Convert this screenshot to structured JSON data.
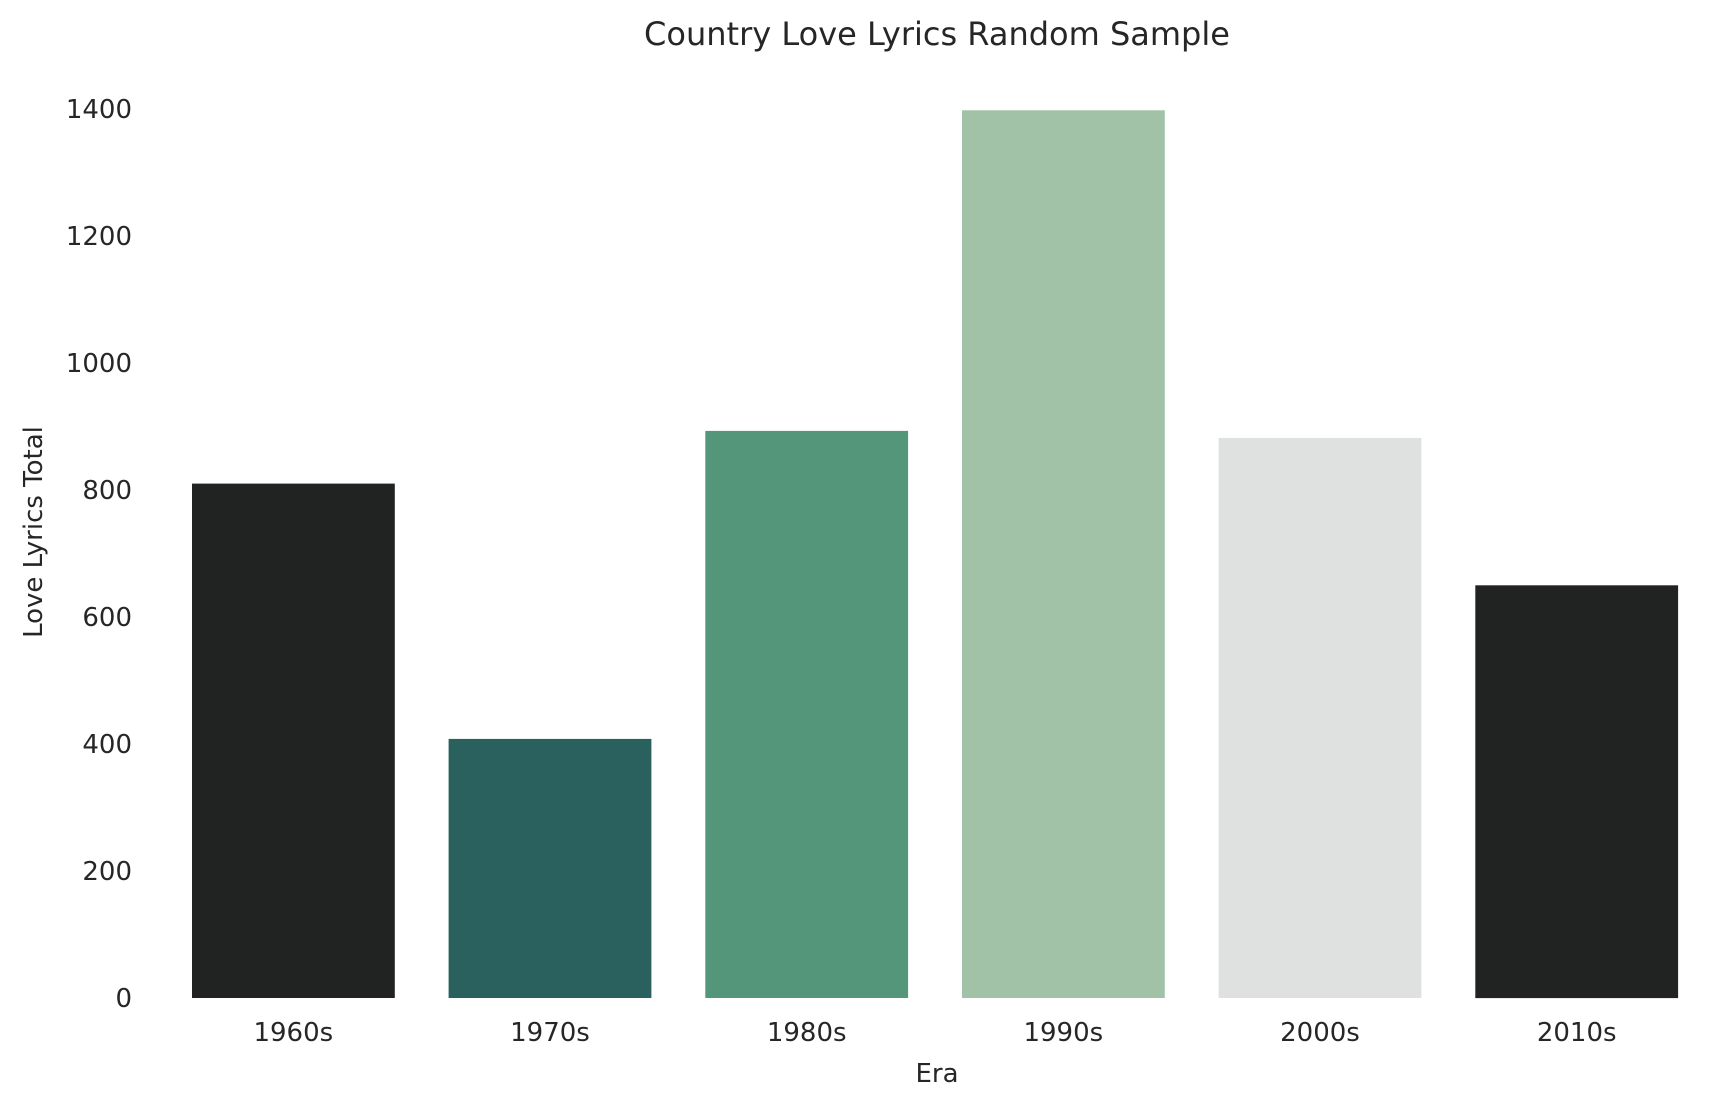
{
  "chart_data": {
    "type": "bar",
    "title": "Country Love Lyrics Random Sample",
    "xlabel": "Era",
    "ylabel": "Love Lyrics Total",
    "categories": [
      "1960s",
      "1970s",
      "1980s",
      "1990s",
      "2000s",
      "2010s"
    ],
    "values": [
      810,
      408,
      893,
      1398,
      882,
      650
    ],
    "ylim": [
      0,
      1400
    ],
    "yticks": [
      "0",
      "200",
      "400",
      "600",
      "800",
      "1000",
      "1200",
      "1400"
    ],
    "ytick_values": [
      0,
      200,
      400,
      600,
      800,
      1000,
      1200,
      1400
    ],
    "bar_colors": [
      "#212322",
      "#2a615f",
      "#54967a",
      "#a2c2a7",
      "#dfe1e0",
      "#212322"
    ],
    "grid": false,
    "legend": "none"
  }
}
